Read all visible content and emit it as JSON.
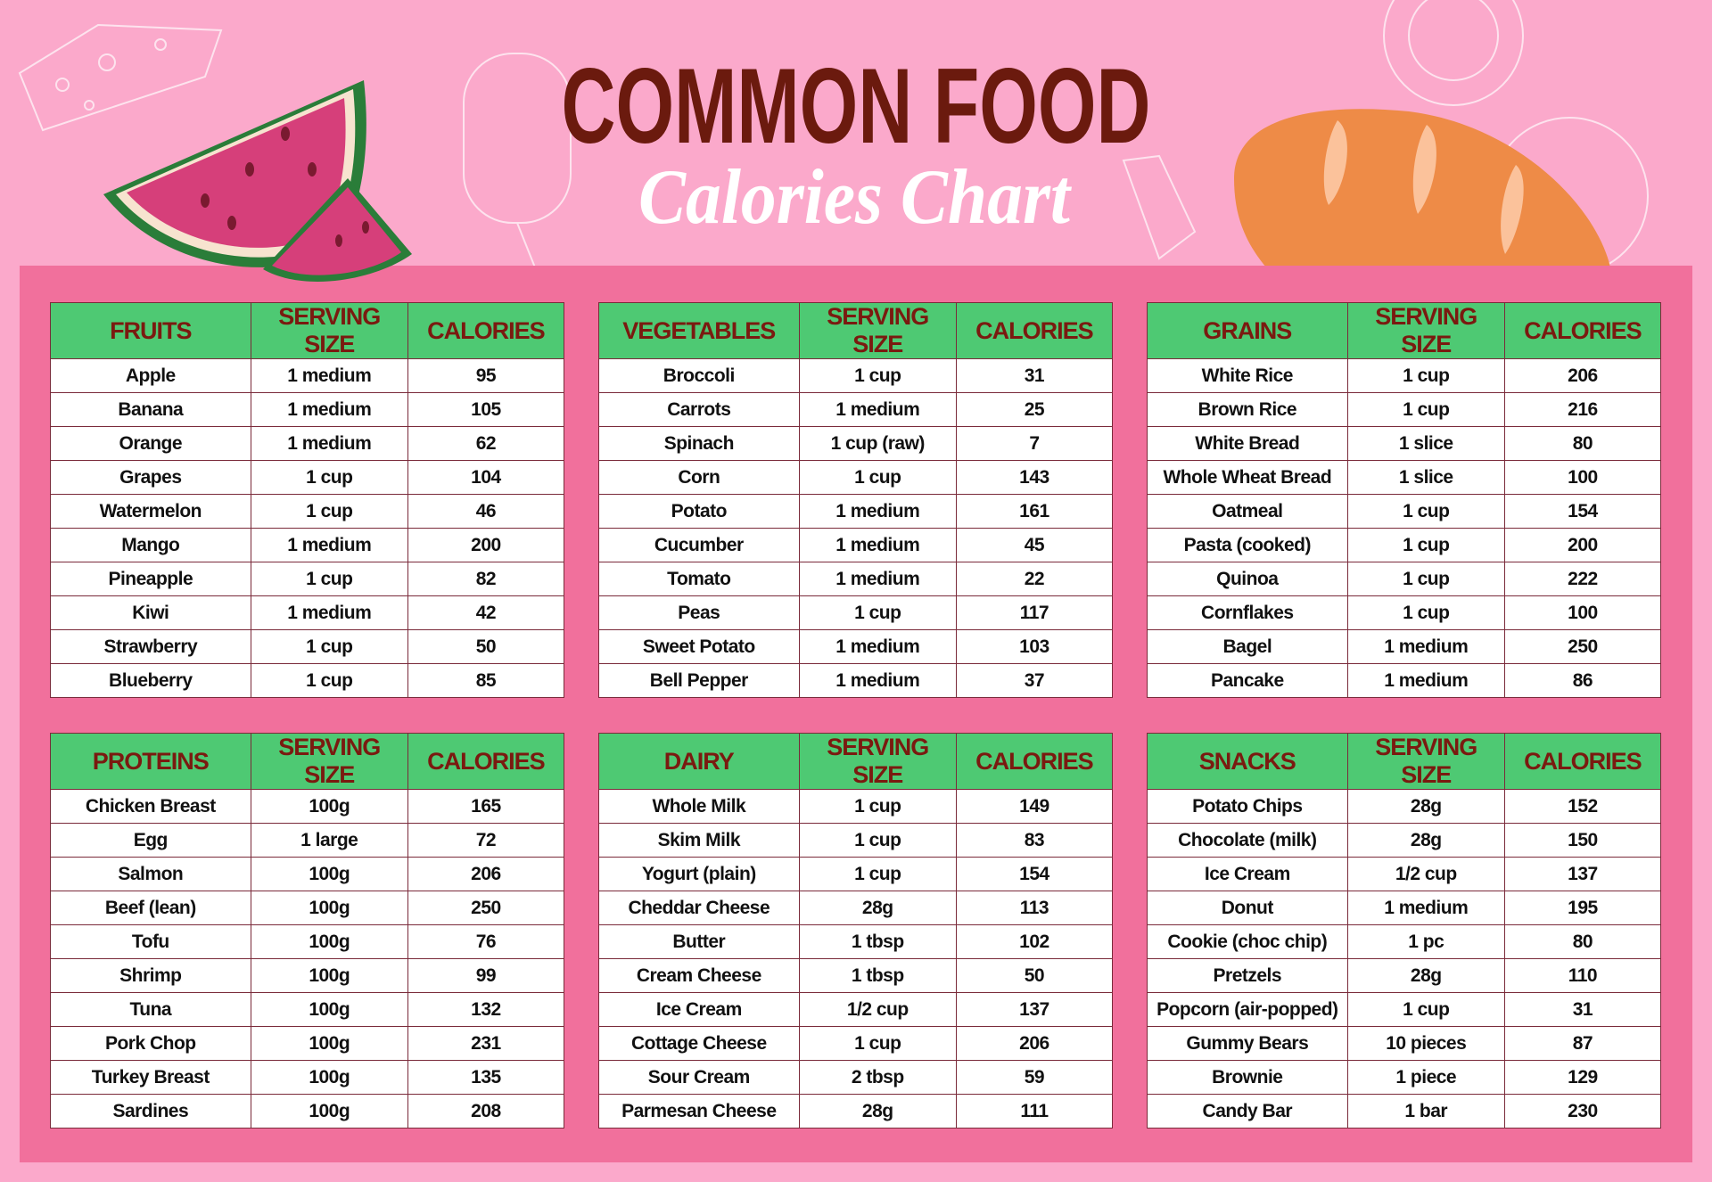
{
  "header": {
    "title": "COMMON FOOD",
    "subtitle": "Calories Chart"
  },
  "tables": [
    {
      "columns": [
        "FRUITS",
        "SERVING SIZE",
        "CALORIES"
      ],
      "rows": [
        [
          "Apple",
          "1 medium",
          95
        ],
        [
          "Banana",
          "1 medium",
          105
        ],
        [
          "Orange",
          "1 medium",
          62
        ],
        [
          "Grapes",
          "1 cup",
          104
        ],
        [
          "Watermelon",
          "1 cup",
          46
        ],
        [
          "Mango",
          "1 medium",
          200
        ],
        [
          "Pineapple",
          "1 cup",
          82
        ],
        [
          "Kiwi",
          "1 medium",
          42
        ],
        [
          "Strawberry",
          "1 cup",
          50
        ],
        [
          "Blueberry",
          "1 cup",
          85
        ]
      ]
    },
    {
      "columns": [
        "VEGETABLES",
        "SERVING SIZE",
        "CALORIES"
      ],
      "rows": [
        [
          "Broccoli",
          "1 cup",
          31
        ],
        [
          "Carrots",
          "1 medium",
          25
        ],
        [
          "Spinach",
          "1 cup (raw)",
          7
        ],
        [
          "Corn",
          "1 cup",
          143
        ],
        [
          "Potato",
          "1 medium",
          161
        ],
        [
          "Cucumber",
          "1 medium",
          45
        ],
        [
          "Tomato",
          "1 medium",
          22
        ],
        [
          "Peas",
          "1 cup",
          117
        ],
        [
          "Sweet Potato",
          "1 medium",
          103
        ],
        [
          "Bell Pepper",
          "1 medium",
          37
        ]
      ]
    },
    {
      "columns": [
        "GRAINS",
        "SERVING SIZE",
        "CALORIES"
      ],
      "rows": [
        [
          "White Rice",
          "1 cup",
          206
        ],
        [
          "Brown Rice",
          "1 cup",
          216
        ],
        [
          "White Bread",
          "1 slice",
          80
        ],
        [
          "Whole Wheat Bread",
          "1 slice",
          100
        ],
        [
          "Oatmeal",
          "1 cup",
          154
        ],
        [
          "Pasta (cooked)",
          "1 cup",
          200
        ],
        [
          "Quinoa",
          "1 cup",
          222
        ],
        [
          "Cornflakes",
          "1 cup",
          100
        ],
        [
          "Bagel",
          "1 medium",
          250
        ],
        [
          "Pancake",
          "1 medium",
          86
        ]
      ]
    },
    {
      "columns": [
        "PROTEINS",
        "SERVING SIZE",
        "CALORIES"
      ],
      "rows": [
        [
          "Chicken Breast",
          "100g",
          165
        ],
        [
          "Egg",
          "1 large",
          72
        ],
        [
          "Salmon",
          "100g",
          206
        ],
        [
          "Beef (lean)",
          "100g",
          250
        ],
        [
          "Tofu",
          "100g",
          76
        ],
        [
          "Shrimp",
          "100g",
          99
        ],
        [
          "Tuna",
          "100g",
          132
        ],
        [
          "Pork Chop",
          "100g",
          231
        ],
        [
          "Turkey Breast",
          "100g",
          135
        ],
        [
          "Sardines",
          "100g",
          208
        ]
      ]
    },
    {
      "columns": [
        "DAIRY",
        "SERVING SIZE",
        "CALORIES"
      ],
      "rows": [
        [
          "Whole Milk",
          "1 cup",
          149
        ],
        [
          "Skim Milk",
          "1 cup",
          83
        ],
        [
          "Yogurt (plain)",
          "1 cup",
          154
        ],
        [
          "Cheddar Cheese",
          "28g",
          113
        ],
        [
          "Butter",
          "1 tbsp",
          102
        ],
        [
          "Cream Cheese",
          "1 tbsp",
          50
        ],
        [
          "Ice Cream",
          "1/2 cup",
          137
        ],
        [
          "Cottage Cheese",
          "1 cup",
          206
        ],
        [
          "Sour Cream",
          "2 tbsp",
          59
        ],
        [
          "Parmesan Cheese",
          "28g",
          111
        ]
      ]
    },
    {
      "columns": [
        "SNACKS",
        "SERVING SIZE",
        "CALORIES"
      ],
      "rows": [
        [
          "Potato Chips",
          "28g",
          152
        ],
        [
          "Chocolate (milk)",
          "28g",
          150
        ],
        [
          "Ice Cream",
          "1/2 cup",
          137
        ],
        [
          "Donut",
          "1 medium",
          195
        ],
        [
          "Cookie (choc chip)",
          "1 pc",
          80
        ],
        [
          "Pretzels",
          "28g",
          110
        ],
        [
          "Popcorn (air-popped)",
          "1 cup",
          31
        ],
        [
          "Gummy Bears",
          "10 pieces",
          87
        ],
        [
          "Brownie",
          "1 piece",
          129
        ],
        [
          "Candy Bar",
          "1 bar",
          230
        ]
      ]
    }
  ]
}
